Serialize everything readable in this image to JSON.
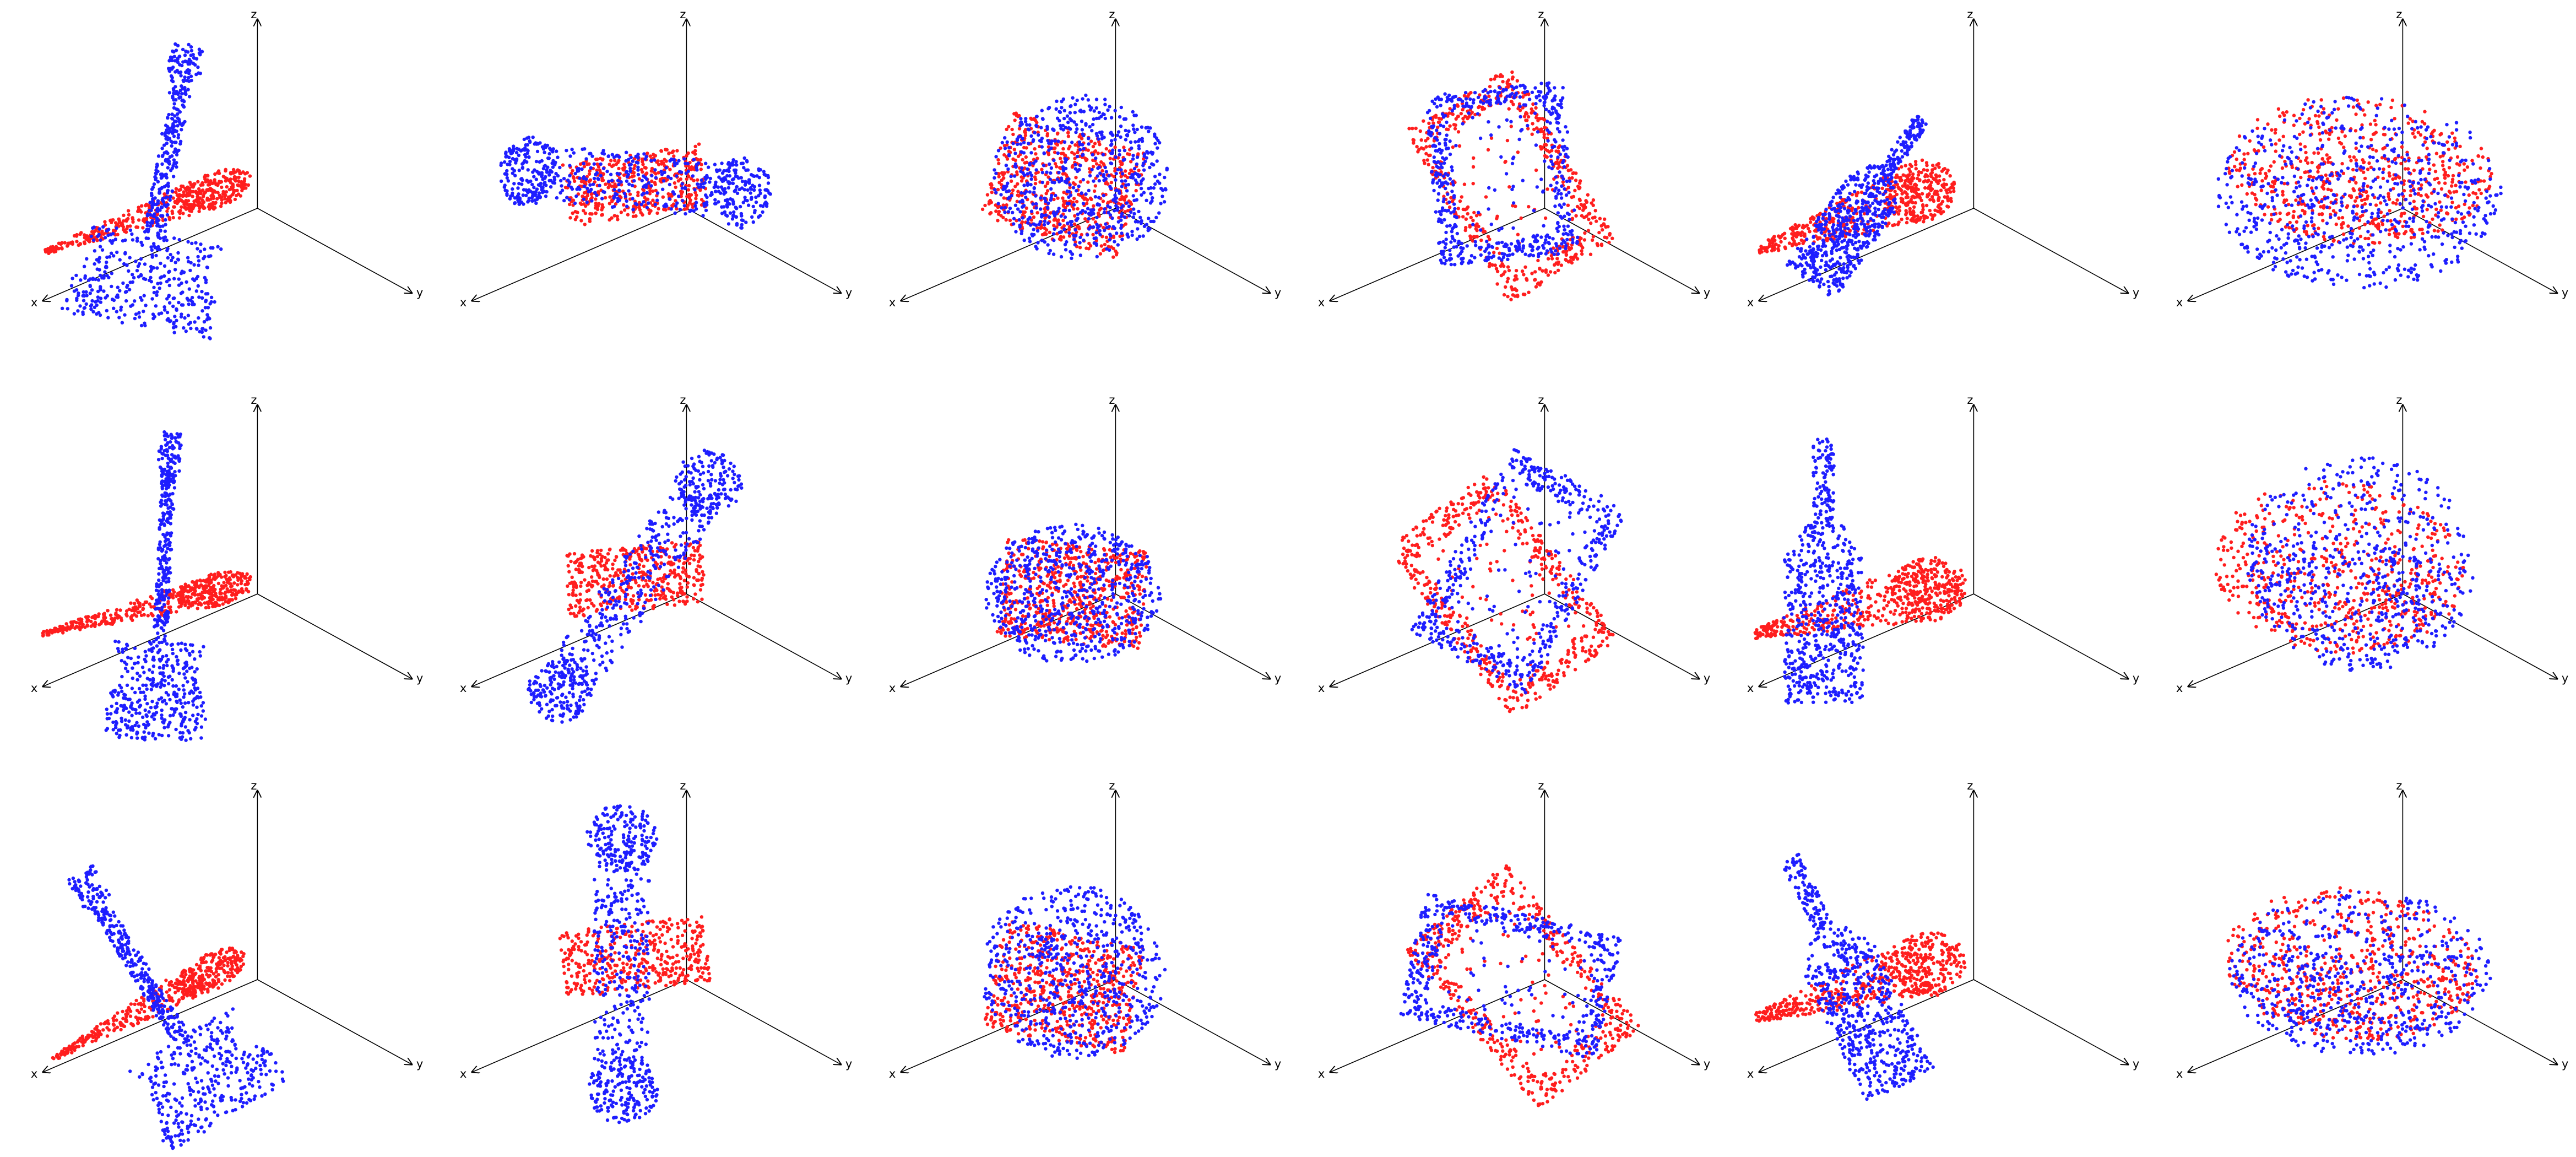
{
  "figure": {
    "rows": 3,
    "cols": 6,
    "colors": {
      "source": "#1e1eff",
      "target": "#ff1e1e",
      "axis": "#000000"
    },
    "axis_labels": {
      "x": "x",
      "y": "y",
      "z": "z"
    },
    "shapes": [
      "guitar",
      "tube",
      "box",
      "frame",
      "bottle",
      "bowl"
    ]
  }
}
